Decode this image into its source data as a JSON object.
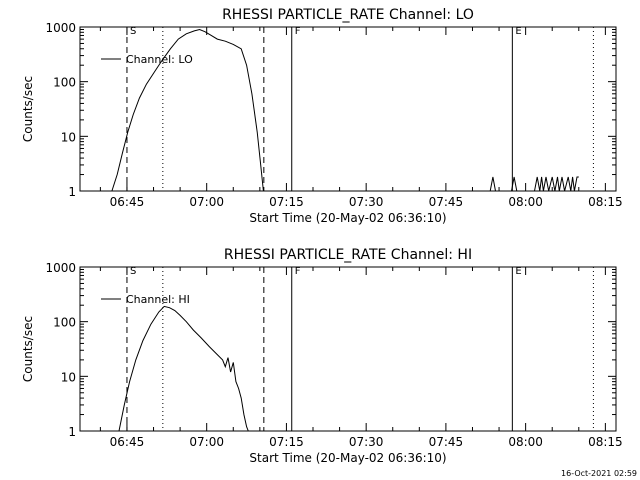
{
  "footer_timestamp": "16-Oct-2021 02:59",
  "chart_data": [
    {
      "type": "line",
      "title": "RHESSI PARTICLE_RATE Channel: LO",
      "xlabel": "Start Time (20-May-02 06:36:10)",
      "ylabel": "Counts/sec",
      "yscale": "log",
      "ylim": [
        1,
        1000
      ],
      "xlim": [
        "06:36:10",
        "08:17:00"
      ],
      "x_ticks": [
        "06:45",
        "07:00",
        "07:15",
        "07:30",
        "07:45",
        "08:00",
        "08:15"
      ],
      "y_ticks": [
        "1",
        "10",
        "100",
        "1000"
      ],
      "legend": [
        "Channel: LO"
      ],
      "legend_position": "top-left",
      "markers": [
        {
          "label": "S",
          "time": "06:45:00",
          "style": "dashed"
        },
        {
          "label": "",
          "time": "06:51:45",
          "style": "dotted"
        },
        {
          "label": "",
          "time": "07:10:45",
          "style": "dashed"
        },
        {
          "label": "F",
          "time": "07:16:00",
          "style": "solid"
        },
        {
          "label": "E",
          "time": "07:57:30",
          "style": "solid"
        },
        {
          "label": "",
          "time": "08:12:45",
          "style": "dotted"
        }
      ],
      "series": [
        {
          "name": "Channel: LO",
          "segments": [
            [
              [
                "06:42:10",
                1
              ],
              [
                "06:43:10",
                2
              ],
              [
                "06:44:10",
                5
              ],
              [
                "06:45:10",
                12
              ],
              [
                "06:46:10",
                25
              ],
              [
                "06:47:20",
                50
              ],
              [
                "06:48:40",
                90
              ],
              [
                "06:50:10",
                150
              ],
              [
                "06:51:40",
                250
              ],
              [
                "06:53:10",
                400
              ],
              [
                "06:54:40",
                600
              ],
              [
                "06:56:10",
                750
              ],
              [
                "06:57:40",
                850
              ],
              [
                "06:58:40",
                900
              ],
              [
                "06:59:40",
                820
              ],
              [
                "07:00:40",
                720
              ],
              [
                "07:02:00",
                600
              ],
              [
                "07:03:30",
                550
              ],
              [
                "07:05:00",
                480
              ],
              [
                "07:06:30",
                400
              ],
              [
                "07:07:30",
                200
              ],
              [
                "07:08:30",
                60
              ],
              [
                "07:09:30",
                12
              ],
              [
                "07:10:10",
                3
              ],
              [
                "07:10:40",
                1
              ]
            ],
            [
              [
                "07:53:20",
                1
              ],
              [
                "07:53:50",
                1.8
              ],
              [
                "07:54:20",
                1
              ]
            ],
            [
              [
                "07:57:20",
                1
              ],
              [
                "07:57:50",
                1.8
              ],
              [
                "07:58:20",
                1
              ]
            ],
            [
              [
                "08:01:40",
                1
              ],
              [
                "08:02:10",
                1.8
              ],
              [
                "08:02:40",
                1
              ],
              [
                "08:03:00",
                1.8
              ],
              [
                "08:03:20",
                1
              ],
              [
                "08:03:50",
                1.8
              ],
              [
                "08:04:20",
                1
              ],
              [
                "08:05:00",
                1.8
              ],
              [
                "08:05:30",
                1
              ],
              [
                "08:06:00",
                1.8
              ],
              [
                "08:06:20",
                1
              ],
              [
                "08:06:50",
                1.8
              ],
              [
                "08:07:20",
                1
              ],
              [
                "08:08:00",
                1.8
              ],
              [
                "08:08:30",
                1
              ],
              [
                "08:08:50",
                1.8
              ],
              [
                "08:09:10",
                1
              ],
              [
                "08:09:40",
                1.8
              ],
              [
                "08:10:00",
                1.8
              ]
            ]
          ]
        }
      ]
    },
    {
      "type": "line",
      "title": "RHESSI PARTICLE_RATE Channel: HI",
      "xlabel": "Start Time (20-May-02 06:36:10)",
      "ylabel": "Counts/sec",
      "yscale": "log",
      "ylim": [
        1,
        1000
      ],
      "xlim": [
        "06:36:10",
        "08:17:00"
      ],
      "x_ticks": [
        "06:45",
        "07:00",
        "07:15",
        "07:30",
        "07:45",
        "08:00",
        "08:15"
      ],
      "y_ticks": [
        "1",
        "10",
        "100",
        "1000"
      ],
      "legend": [
        "Channel: HI"
      ],
      "legend_position": "top-left",
      "markers": [
        {
          "label": "S",
          "time": "06:45:00",
          "style": "dashed"
        },
        {
          "label": "",
          "time": "06:51:45",
          "style": "dotted"
        },
        {
          "label": "",
          "time": "07:10:45",
          "style": "dashed"
        },
        {
          "label": "F",
          "time": "07:16:00",
          "style": "solid"
        },
        {
          "label": "E",
          "time": "07:57:30",
          "style": "solid"
        },
        {
          "label": "",
          "time": "08:12:45",
          "style": "dotted"
        }
      ],
      "series": [
        {
          "name": "Channel: HI",
          "segments": [
            [
              [
                "06:43:30",
                1
              ],
              [
                "06:44:30",
                3
              ],
              [
                "06:45:30",
                8
              ],
              [
                "06:46:40",
                20
              ],
              [
                "06:48:00",
                45
              ],
              [
                "06:49:30",
                90
              ],
              [
                "06:51:00",
                150
              ],
              [
                "06:52:00",
                190
              ],
              [
                "06:53:00",
                180
              ],
              [
                "06:54:00",
                160
              ],
              [
                "06:55:00",
                130
              ],
              [
                "06:56:10",
                100
              ],
              [
                "06:57:30",
                70
              ],
              [
                "06:59:00",
                50
              ],
              [
                "07:00:30",
                35
              ],
              [
                "07:02:00",
                25
              ],
              [
                "07:03:00",
                20
              ],
              [
                "07:03:30",
                15
              ],
              [
                "07:04:00",
                22
              ],
              [
                "07:04:30",
                12
              ],
              [
                "07:05:00",
                18
              ],
              [
                "07:05:30",
                8
              ],
              [
                "07:06:00",
                6
              ],
              [
                "07:06:30",
                4
              ],
              [
                "07:07:00",
                2
              ],
              [
                "07:07:30",
                1.2
              ],
              [
                "07:07:50",
                1
              ]
            ]
          ]
        }
      ]
    }
  ]
}
